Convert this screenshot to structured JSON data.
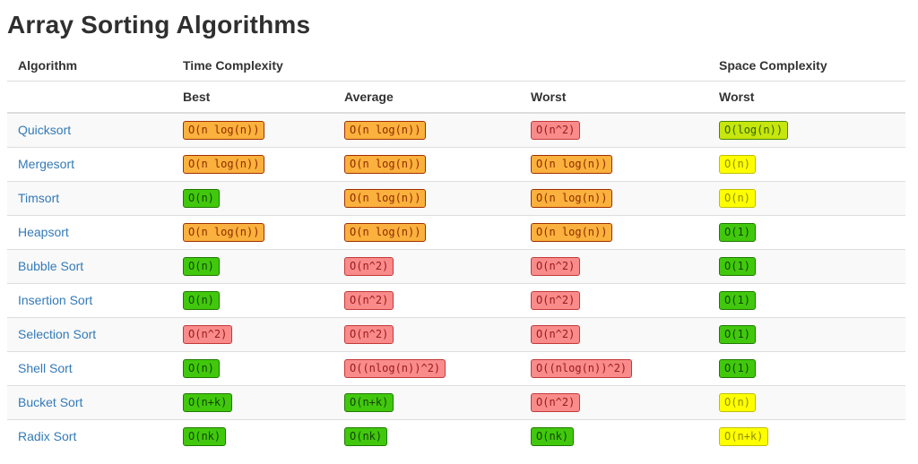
{
  "page": {
    "title": "Array Sorting Algorithms"
  },
  "table": {
    "header": {
      "algorithm": "Algorithm",
      "time_complexity": "Time Complexity",
      "space_complexity": "Space Complexity",
      "best": "Best",
      "average": "Average",
      "worst_time": "Worst",
      "worst_space": "Worst"
    },
    "level_colors": {
      "green": {
        "bg": "#41c80d",
        "border": "#1f7a00",
        "text": "#134400"
      },
      "chartreuse": {
        "bg": "#c6e60d",
        "border": "#4c8500",
        "text": "#2f6300"
      },
      "yellow": {
        "bg": "#fefe00",
        "border": "#bfbf00",
        "text": "#8e8e00"
      },
      "orange": {
        "bg": "#fbb13d",
        "border": "#a13000",
        "text": "#8f2a00"
      },
      "red": {
        "bg": "#f98b8b",
        "border": "#c43939",
        "text": "#9a1919"
      }
    },
    "link_color": "#337ab7",
    "rows": [
      {
        "name": "Quicksort",
        "best": {
          "text": "O(n log(n))",
          "level": "orange"
        },
        "average": {
          "text": "O(n log(n))",
          "level": "orange"
        },
        "worst": {
          "text": "O(n^2)",
          "level": "red"
        },
        "space": {
          "text": "O(log(n))",
          "level": "chartreuse"
        }
      },
      {
        "name": "Mergesort",
        "best": {
          "text": "O(n log(n))",
          "level": "orange"
        },
        "average": {
          "text": "O(n log(n))",
          "level": "orange"
        },
        "worst": {
          "text": "O(n log(n))",
          "level": "orange"
        },
        "space": {
          "text": "O(n)",
          "level": "yellow"
        }
      },
      {
        "name": "Timsort",
        "best": {
          "text": "O(n)",
          "level": "green"
        },
        "average": {
          "text": "O(n log(n))",
          "level": "orange"
        },
        "worst": {
          "text": "O(n log(n))",
          "level": "orange"
        },
        "space": {
          "text": "O(n)",
          "level": "yellow"
        }
      },
      {
        "name": "Heapsort",
        "best": {
          "text": "O(n log(n))",
          "level": "orange"
        },
        "average": {
          "text": "O(n log(n))",
          "level": "orange"
        },
        "worst": {
          "text": "O(n log(n))",
          "level": "orange"
        },
        "space": {
          "text": "O(1)",
          "level": "green"
        }
      },
      {
        "name": "Bubble Sort",
        "best": {
          "text": "O(n)",
          "level": "green"
        },
        "average": {
          "text": "O(n^2)",
          "level": "red"
        },
        "worst": {
          "text": "O(n^2)",
          "level": "red"
        },
        "space": {
          "text": "O(1)",
          "level": "green"
        }
      },
      {
        "name": "Insertion Sort",
        "best": {
          "text": "O(n)",
          "level": "green"
        },
        "average": {
          "text": "O(n^2)",
          "level": "red"
        },
        "worst": {
          "text": "O(n^2)",
          "level": "red"
        },
        "space": {
          "text": "O(1)",
          "level": "green"
        }
      },
      {
        "name": "Selection Sort",
        "best": {
          "text": "O(n^2)",
          "level": "red"
        },
        "average": {
          "text": "O(n^2)",
          "level": "red"
        },
        "worst": {
          "text": "O(n^2)",
          "level": "red"
        },
        "space": {
          "text": "O(1)",
          "level": "green"
        }
      },
      {
        "name": "Shell Sort",
        "best": {
          "text": "O(n)",
          "level": "green"
        },
        "average": {
          "text": "O((nlog(n))^2)",
          "level": "red"
        },
        "worst": {
          "text": "O((nlog(n))^2)",
          "level": "red"
        },
        "space": {
          "text": "O(1)",
          "level": "green"
        }
      },
      {
        "name": "Bucket Sort",
        "best": {
          "text": "O(n+k)",
          "level": "green"
        },
        "average": {
          "text": "O(n+k)",
          "level": "green"
        },
        "worst": {
          "text": "O(n^2)",
          "level": "red"
        },
        "space": {
          "text": "O(n)",
          "level": "yellow"
        }
      },
      {
        "name": "Radix Sort",
        "best": {
          "text": "O(nk)",
          "level": "green"
        },
        "average": {
          "text": "O(nk)",
          "level": "green"
        },
        "worst": {
          "text": "O(nk)",
          "level": "green"
        },
        "space": {
          "text": "O(n+k)",
          "level": "yellow"
        }
      }
    ]
  }
}
